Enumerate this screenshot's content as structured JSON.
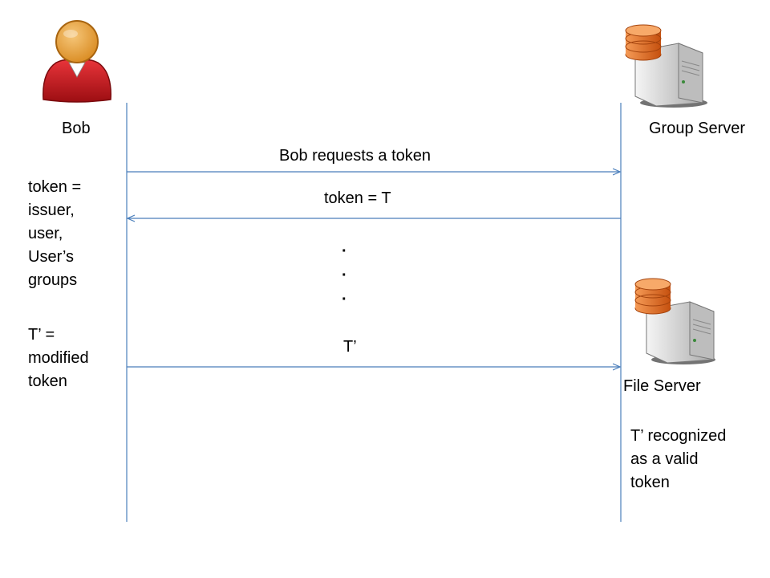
{
  "actors": {
    "bob": {
      "label": "Bob"
    },
    "group_server": {
      "label": "Group Server"
    },
    "file_server": {
      "label": "File Server"
    }
  },
  "messages": {
    "request": "Bob requests a token",
    "response": "token = T",
    "dots": [
      "·",
      "·",
      "·"
    ],
    "modified": "T’"
  },
  "notes": {
    "token_def": [
      "token =",
      "issuer,",
      "user,",
      "User’s",
      "groups"
    ],
    "modified_def": [
      "T’ =",
      "modified",
      "token"
    ],
    "recognized": [
      "T’ recognized",
      "as a valid",
      "token"
    ]
  },
  "colors": {
    "line": "#4a7ebb",
    "person_red": "#c8161d",
    "person_head": "#e8a33c",
    "db_orange": "#e86d1f",
    "server_gray": "#d9d9d9"
  }
}
